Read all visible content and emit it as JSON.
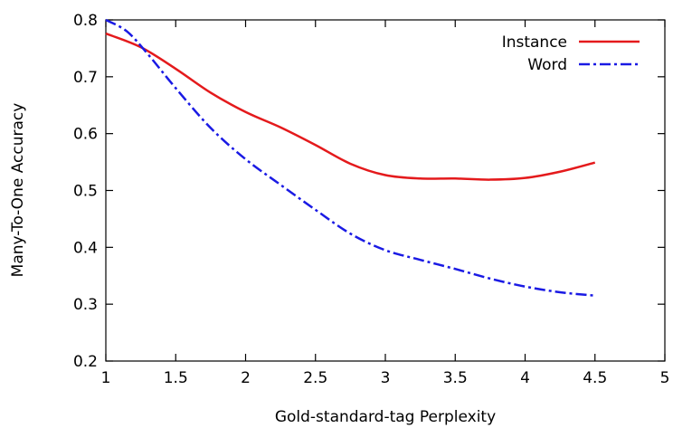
{
  "chart_data": {
    "type": "line",
    "xlabel": "Gold-standard-tag Perplexity",
    "ylabel": "Many-To-One Accuracy",
    "xlim": [
      1,
      5
    ],
    "ylim": [
      0.2,
      0.8
    ],
    "x_ticks": [
      1,
      1.5,
      2,
      2.5,
      3,
      3.5,
      4,
      4.5,
      5
    ],
    "x_tick_labels": [
      "1",
      "1.5",
      "2",
      "2.5",
      "3",
      "3.5",
      "4",
      "4.5",
      "5"
    ],
    "y_ticks": [
      0.2,
      0.3,
      0.4,
      0.5,
      0.6,
      0.7,
      0.8
    ],
    "y_tick_labels": [
      "0.2",
      "0.3",
      "0.4",
      "0.5",
      "0.6",
      "0.7",
      "0.8"
    ],
    "grid": false,
    "legend_position": "top-right",
    "series": [
      {
        "name": "Instance",
        "color": "#e41a1c",
        "style": "solid",
        "x": [
          1.0,
          1.25,
          1.5,
          1.75,
          2.0,
          2.25,
          2.5,
          2.75,
          3.0,
          3.25,
          3.5,
          3.75,
          4.0,
          4.25,
          4.5
        ],
        "y": [
          0.776,
          0.752,
          0.714,
          0.672,
          0.638,
          0.611,
          0.58,
          0.547,
          0.527,
          0.521,
          0.521,
          0.519,
          0.522,
          0.533,
          0.549
        ]
      },
      {
        "name": "Word",
        "color": "#1a1ae4",
        "style": "dash-dot",
        "x": [
          1.0,
          1.15,
          1.3,
          1.5,
          1.75,
          2.0,
          2.25,
          2.5,
          2.75,
          3.0,
          3.25,
          3.5,
          3.75,
          4.0,
          4.25,
          4.5
        ],
        "y": [
          0.8,
          0.78,
          0.74,
          0.68,
          0.61,
          0.555,
          0.51,
          0.466,
          0.424,
          0.395,
          0.378,
          0.362,
          0.345,
          0.331,
          0.321,
          0.315
        ]
      }
    ]
  }
}
